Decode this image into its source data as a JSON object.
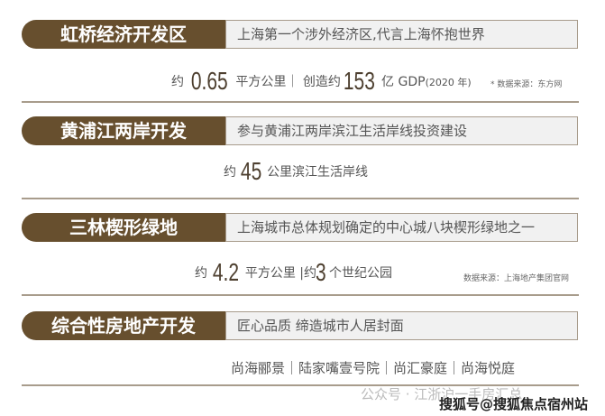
{
  "sections": [
    {
      "title": "虹桥经济开发区",
      "tagline": "上海第一个涉外经济区,代言上海怀抱世界",
      "stats": {
        "p1": "约",
        "v1": "0.65",
        "p2": "平方公里｜ 创造约",
        "v2": "153",
        "p3": "亿",
        "p4": "GDP",
        "p5": "(2020 年)"
      },
      "note": "* 数据来源：东方网"
    },
    {
      "title": "黄浦江两岸开发",
      "tagline": "参与黄浦江两岸滨江生活岸线投资建设",
      "stats": {
        "p1": "约",
        "v1": "45",
        "p2": "公里滨江生活岸线"
      }
    },
    {
      "title": "三林楔形绿地",
      "tagline": "上海城市总体规划确定的中心城八块楔形绿地之一",
      "stats": {
        "p1": "约",
        "v1": "4.2",
        "p2": "平方公里 |约",
        "v2": "3",
        "p3": "个世纪公园"
      },
      "note": "数据来源：上海地产集团官网"
    },
    {
      "title": "综合性房地产开发",
      "tagline": "匠心品质 缔造城市人居封面",
      "stats": {
        "text": "尚海郦景｜陆家嘴壹号院｜尚汇豪庭｜尚海悦庭"
      }
    }
  ],
  "watermark": {
    "wechat": "公众号 · 江浙沪一手房汇总",
    "sohu": "搜狐号@搜狐焦点宿州站"
  },
  "colors": {
    "brand": "#674f2e",
    "box": "#f1f1f1"
  }
}
